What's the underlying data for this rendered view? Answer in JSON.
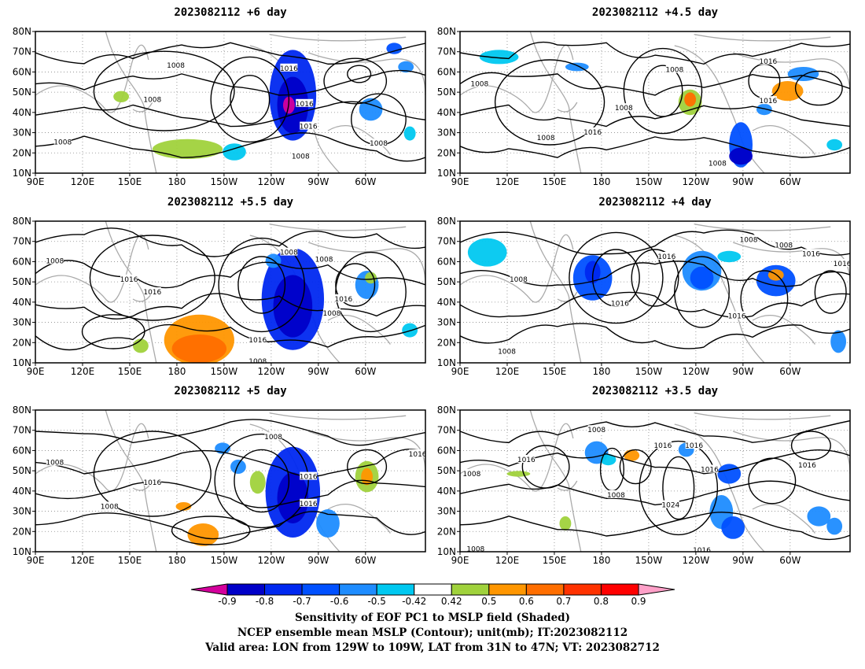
{
  "panels": [
    {
      "title": "2023082112  +6 day",
      "contour_labels": [
        "1008",
        "1016",
        "1008",
        "1016",
        "1016",
        "1008",
        "1008",
        "1008"
      ]
    },
    {
      "title": "2023082112  +4.5 day",
      "contour_labels": [
        "1008",
        "1008",
        "1016",
        "1008",
        "1016",
        "1016",
        "1008",
        "1008"
      ]
    },
    {
      "title": "2023082112  +5.5 day",
      "contour_labels": [
        "1008",
        "1016",
        "1016",
        "1008",
        "1008",
        "1016",
        "1008",
        "1016",
        "1008"
      ]
    },
    {
      "title": "2023082112  +4 day",
      "contour_labels": [
        "1008",
        "1016",
        "1008",
        "1016",
        "1008",
        "1016",
        "1016",
        "1008",
        "1016"
      ]
    },
    {
      "title": "2023082112  +5 day",
      "contour_labels": [
        "1008",
        "1008",
        "1016",
        "1008",
        "1016",
        "1016",
        "1016"
      ]
    },
    {
      "title": "2023082112  +3.5 day",
      "contour_labels": [
        "1008",
        "1016",
        "1016",
        "1008",
        "1024",
        "1016",
        "1016",
        "1016",
        "1008",
        "1008",
        "1016"
      ]
    }
  ],
  "lat_ticks": [
    "10N",
    "20N",
    "30N",
    "40N",
    "50N",
    "60N",
    "70N",
    "80N"
  ],
  "lon_ticks": [
    "90E",
    "120E",
    "150E",
    "180",
    "150W",
    "120W",
    "90W",
    "60W"
  ],
  "colorbar": {
    "labels": [
      "-0.9",
      "-0.8",
      "-0.7",
      "-0.6",
      "-0.5",
      "-0.42",
      "0.42",
      "0.5",
      "0.6",
      "0.7",
      "0.8",
      "0.9"
    ],
    "colors": [
      "#d4009c",
      "#0000c8",
      "#0028f0",
      "#0050ff",
      "#1e8cff",
      "#00c8f0",
      "#ffffff",
      "#a0d23c",
      "#ff9600",
      "#ff6e00",
      "#ff3200",
      "#ff0000",
      "#ffa0c8"
    ]
  },
  "footer": {
    "line1": "Sensitivity of EOF PC1 to MSLP field (Shaded)",
    "line2": "NCEP ensemble mean MSLP (Contour); unit(mb); IT:2023082112",
    "line3": "Valid area: LON from 129W to 109W, LAT from 31N to 47N; VT: 2023082712"
  }
}
